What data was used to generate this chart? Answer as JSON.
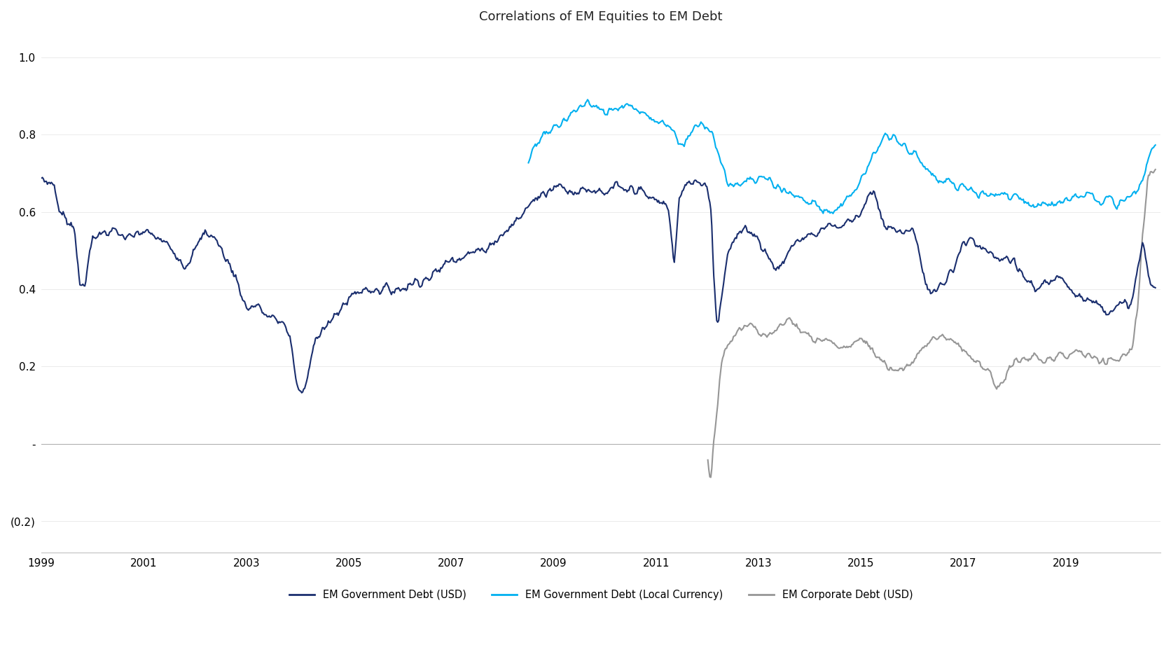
{
  "title": "Correlations of EM Equities to EM Debt",
  "title_fontsize": 13,
  "background_color": "#ffffff",
  "colors": {
    "em_gov_usd": "#1a2e6e",
    "em_gov_local": "#00b0f0",
    "em_corp_usd": "#969696"
  },
  "yticks": [
    1.0,
    0.8,
    0.6,
    0.4,
    0.2,
    0.0,
    -0.2
  ],
  "ytick_labels": [
    "1.0",
    "0.8",
    "0.6",
    "0.4",
    "0.2",
    "-",
    "(0.2)"
  ],
  "ylim": [
    -0.28,
    1.06
  ],
  "xlim_start": 1999.0,
  "xlim_end": 2020.85,
  "xticks": [
    1999,
    2001,
    2003,
    2005,
    2007,
    2009,
    2011,
    2013,
    2015,
    2017,
    2019
  ],
  "legend": [
    {
      "label": "EM Government Debt (USD)",
      "color": "#1a2e6e"
    },
    {
      "label": "EM Government Debt (Local Currency)",
      "color": "#00b0f0"
    },
    {
      "label": "EM Corporate Debt (USD)",
      "color": "#969696"
    }
  ],
  "line_width": 1.5
}
